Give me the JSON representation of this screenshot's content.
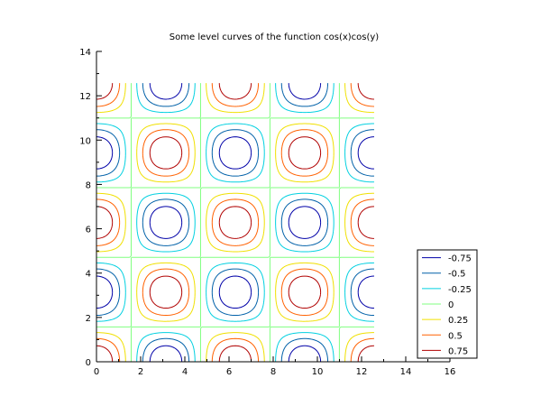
{
  "chart_data": {
    "type": "line",
    "subtype": "contour",
    "title": "Some level curves of the function cos(x)cos(y)",
    "xlabel": "",
    "ylabel": "",
    "xlim": [
      0,
      16
    ],
    "ylim": [
      0,
      14
    ],
    "x_ticks": [
      0,
      2,
      4,
      6,
      8,
      10,
      12,
      14,
      16
    ],
    "y_ticks": [
      0,
      2,
      4,
      6,
      8,
      10,
      12,
      14
    ],
    "x_tick_labels": [
      "0",
      "2",
      "4",
      "6",
      "8",
      "10",
      "12",
      "14",
      "16"
    ],
    "y_tick_labels": [
      "0",
      "2",
      "4",
      "6",
      "8",
      "10",
      "12",
      "14"
    ],
    "grid": false,
    "function": "cos(x)cos(y)",
    "domain_x": [
      0,
      12.57
    ],
    "domain_y": [
      0,
      12.57
    ],
    "legend_position": "bottom-right",
    "series": [
      {
        "name": "-0.75",
        "level": -0.75,
        "color": "#0000a8"
      },
      {
        "name": "-0.5",
        "level": -0.5,
        "color": "#0060a8"
      },
      {
        "name": "-0.25",
        "level": -0.25,
        "color": "#00d0e0"
      },
      {
        "name": "0",
        "level": 0,
        "color": "#80ff80"
      },
      {
        "name": "0.25",
        "level": 0.25,
        "color": "#f0e000"
      },
      {
        "name": "0.5",
        "level": 0.5,
        "color": "#ff6000"
      },
      {
        "name": "0.75",
        "level": 0.75,
        "color": "#b00000"
      }
    ]
  }
}
